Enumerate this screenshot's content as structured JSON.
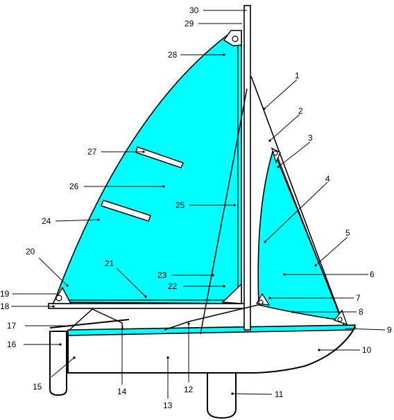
{
  "colors": {
    "sail": "#00ffff",
    "outline": "#000000",
    "background": "#ffffff"
  },
  "callouts": [
    {
      "number": "1"
    },
    {
      "number": "2"
    },
    {
      "number": "3"
    },
    {
      "number": "4"
    },
    {
      "number": "5"
    },
    {
      "number": "6"
    },
    {
      "number": "7"
    },
    {
      "number": "8"
    },
    {
      "number": "9"
    },
    {
      "number": "10"
    },
    {
      "number": "11"
    },
    {
      "number": "12"
    },
    {
      "number": "13"
    },
    {
      "number": "14"
    },
    {
      "number": "15"
    },
    {
      "number": "16"
    },
    {
      "number": "17"
    },
    {
      "number": "18"
    },
    {
      "number": "19"
    },
    {
      "number": "20"
    },
    {
      "number": "21"
    },
    {
      "number": "22"
    },
    {
      "number": "23"
    },
    {
      "number": "24"
    },
    {
      "number": "25"
    },
    {
      "number": "26"
    },
    {
      "number": "27"
    },
    {
      "number": "28"
    },
    {
      "number": "29"
    },
    {
      "number": "30"
    }
  ]
}
